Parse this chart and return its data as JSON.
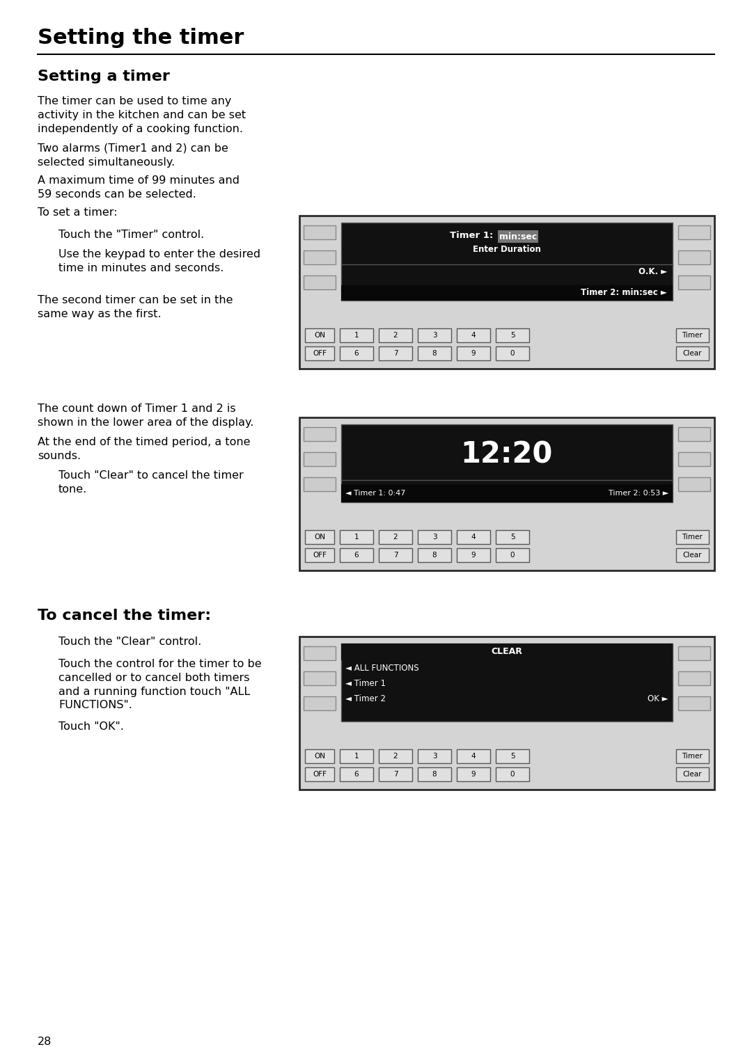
{
  "page_bg": "#ffffff",
  "main_title": "Setting the timer",
  "section1_title": "Setting a timer",
  "para1": "The timer can be used to time any\nactivity in the kitchen and can be set\nindependently of a cooking function.",
  "para2": "Two alarms (Timer1 and 2) can be\nselected simultaneously.",
  "para3": "A maximum time of 99 minutes and\n59 seconds can be selected.",
  "para4": "To set a timer:",
  "indent1": "Touch the \"Timer\" control.",
  "indent2": "Use the keypad to enter the desired\ntime in minutes and seconds.",
  "para5": "The second timer can be set in the\nsame way as the first.",
  "para6": "The count down of Timer 1 and 2 is\nshown in the lower area of the display.",
  "para7": "At the end of the timed period, a tone\nsounds.",
  "indent3": "Touch \"Clear\" to cancel the timer\ntone.",
  "section3_title": "To cancel the timer:",
  "indent4": "Touch the \"Clear\" control.",
  "indent5": "Touch the control for the timer to be\ncancelled or to cancel both timers\nand a running function touch \"ALL\nFUNCTIONS\".",
  "indent6": "Touch \"OK\".",
  "page_number": "28",
  "display1_timer1": "Timer 1: ",
  "display1_highlight": "min:sec",
  "display1_sub": "Enter Duration",
  "display1_ok": "O.K.",
  "display1_timer2": "Timer 2: min:sec",
  "display2_time": "12:20",
  "display2_t1": "Timer 1: 0:47",
  "display2_t2": "Timer 2: 0:53",
  "display3_header": "CLEAR",
  "display3_r1": "ALL FUNCTIONS",
  "display3_r2": "Timer 1",
  "display3_r3": "Timer 2",
  "display3_ok": "OK",
  "keypad_row1": [
    "ON",
    "1",
    "2",
    "3",
    "4",
    "5",
    "Timer"
  ],
  "keypad_row2": [
    "OFF",
    "6",
    "7",
    "8",
    "9",
    "0",
    "Clear"
  ],
  "panel_bg": "#d4d4d4",
  "panel_border": "#2a2a2a",
  "disp_bg": "#111111",
  "white": "#ffffff",
  "black": "#000000",
  "btn_bg": "#cccccc",
  "btn_border": "#888888",
  "key_bg": "#e0e0e0",
  "key_border": "#555555",
  "highlight_bg": "#777777"
}
